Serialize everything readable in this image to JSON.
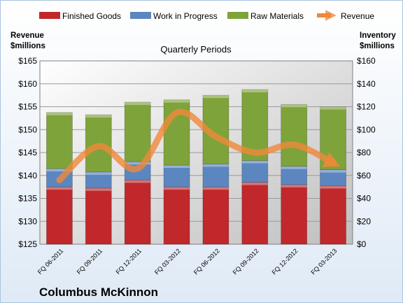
{
  "chart_data": {
    "type": "bar",
    "stacked": true,
    "title": "Quarterly Periods",
    "footer": "Columbus McKinnon",
    "left_axis": {
      "title_line1": "Revenue",
      "title_line2": "$millions",
      "min": 125,
      "max": 165,
      "step": 5,
      "prefix": "$"
    },
    "right_axis": {
      "title_line1": "Inventory",
      "title_line2": "$millions",
      "min": 0,
      "max": 160,
      "step": 20,
      "prefix": "$"
    },
    "categories": [
      "FQ 06-2011",
      "FQ 09-2011",
      "FQ 12-2011",
      "FQ 03-2012",
      "FQ 06-2012",
      "FQ 09-2012",
      "FQ 12-2012",
      "FQ 03-2013"
    ],
    "series": [
      {
        "name": "Finished Goods",
        "axis": "right",
        "color": "#c0282b",
        "values": [
          50,
          49,
          56,
          50,
          50,
          54,
          52,
          51
        ]
      },
      {
        "name": "Work in Progress",
        "axis": "right",
        "color": "#5b86c0",
        "values": [
          16,
          14,
          16,
          19,
          20,
          19,
          16,
          14
        ]
      },
      {
        "name": "Raw Materials",
        "axis": "right",
        "color": "#7ea33a",
        "values": [
          49,
          50,
          52,
          57,
          60,
          62,
          54,
          55
        ]
      },
      {
        "name": "Revenue",
        "axis": "left",
        "type": "line",
        "color": "#f0883a",
        "values": [
          139,
          146.4,
          141.5,
          153.7,
          148.5,
          145,
          146.7,
          142.7
        ]
      }
    ],
    "legend_position": "top",
    "grid": true
  }
}
